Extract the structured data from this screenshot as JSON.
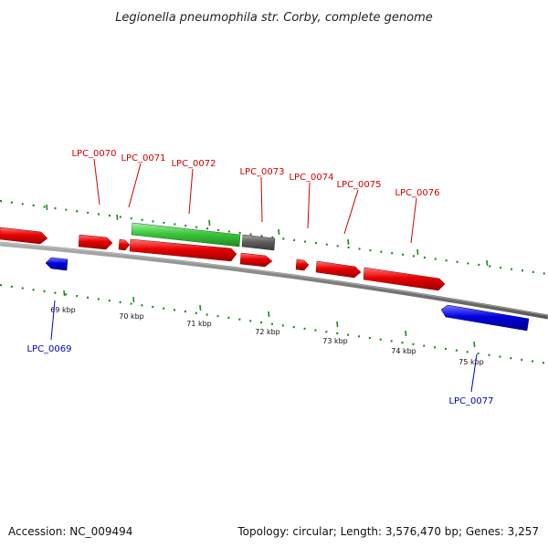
{
  "title": "Legionella pneumophila str. Corby, complete genome",
  "footer": {
    "accession": "Accession: NC_009494",
    "summary": "Topology: circular; Length: 3,576,470 bp; Genes: 3,257"
  },
  "colors": {
    "forward_gene": "#e80000",
    "reverse_gene": "#0000e0",
    "highlight_gene": "#3cc83c",
    "grey_gene": "#606060",
    "backbone": "#808080",
    "tick": "#1e8c1e",
    "label_fwd": "#d40000",
    "label_rev": "#0000c8"
  },
  "scale": {
    "ticks": [
      {
        "kbp": 69,
        "label": "69 kbp"
      },
      {
        "kbp": 70,
        "label": "70 kbp"
      },
      {
        "kbp": 71,
        "label": "71 kbp"
      },
      {
        "kbp": 72,
        "label": "72 kbp"
      },
      {
        "kbp": 73,
        "label": "73 kbp"
      },
      {
        "kbp": 74,
        "label": "74 kbp"
      },
      {
        "kbp": 75,
        "label": "75 kbp"
      }
    ]
  },
  "gene_labels": {
    "forward": [
      "LPC_0070",
      "LPC_0071",
      "LPC_0072",
      "LPC_0073",
      "LPC_0074",
      "LPC_0075",
      "LPC_0076"
    ],
    "reverse": [
      "LPC_0069",
      "LPC_0077"
    ]
  }
}
